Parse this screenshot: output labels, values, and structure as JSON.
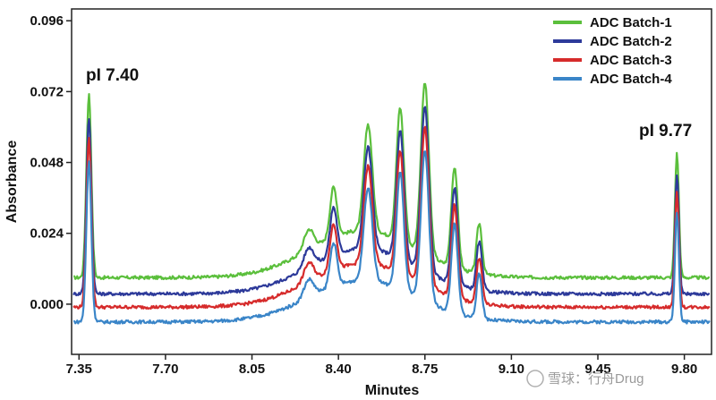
{
  "chart_data": {
    "type": "line",
    "xlabel": "Minutes",
    "ylabel": "Absorbance",
    "xlim": [
      7.32,
      9.91
    ],
    "ylim": [
      -0.017,
      0.1
    ],
    "x_ticks": [
      7.35,
      7.7,
      8.05,
      8.4,
      8.75,
      9.1,
      9.45,
      9.8
    ],
    "x_tick_labels": [
      "7.35",
      "7.70",
      "8.05",
      "8.40",
      "8.75",
      "9.10",
      "9.45",
      "9.80"
    ],
    "y_ticks": [
      0.0,
      0.024,
      0.048,
      0.072,
      0.096
    ],
    "y_tick_labels": [
      "0.000",
      "0.024",
      "0.048",
      "0.072",
      "0.096"
    ],
    "legend_position": "top-right",
    "annotations": [
      {
        "text": "pI 7.40",
        "x": 7.4,
        "y": 0.0755
      },
      {
        "text": "pI 9.77",
        "x": 9.77,
        "y": 0.0535
      }
    ],
    "series": [
      {
        "name": "ADC Batch-1",
        "color": "#5bbf3c",
        "offset": 0.009,
        "scale": 1.0
      },
      {
        "name": "ADC Batch-2",
        "color": "#2d3a9a",
        "offset": 0.0035,
        "scale": 0.96
      },
      {
        "name": "ADC Batch-3",
        "color": "#d62b2b",
        "offset": -0.001,
        "scale": 0.92
      },
      {
        "name": "ADC Batch-4",
        "color": "#3a85c8",
        "offset": -0.006,
        "scale": 0.88
      }
    ],
    "features": {
      "hump": {
        "center": 8.5,
        "width": 0.3,
        "height": 0.016
      },
      "peaks": [
        {
          "x": 7.39,
          "h": 0.062,
          "w": 0.01
        },
        {
          "x": 8.28,
          "h": 0.007,
          "w": 0.02
        },
        {
          "x": 8.38,
          "h": 0.017,
          "w": 0.014
        },
        {
          "x": 8.52,
          "h": 0.036,
          "w": 0.017
        },
        {
          "x": 8.65,
          "h": 0.045,
          "w": 0.015
        },
        {
          "x": 8.75,
          "h": 0.058,
          "w": 0.016
        },
        {
          "x": 8.87,
          "h": 0.034,
          "w": 0.013
        },
        {
          "x": 8.97,
          "h": 0.017,
          "w": 0.011
        },
        {
          "x": 9.77,
          "h": 0.042,
          "w": 0.008
        }
      ]
    }
  },
  "watermark": {
    "text": "雪球：行舟Drug"
  }
}
